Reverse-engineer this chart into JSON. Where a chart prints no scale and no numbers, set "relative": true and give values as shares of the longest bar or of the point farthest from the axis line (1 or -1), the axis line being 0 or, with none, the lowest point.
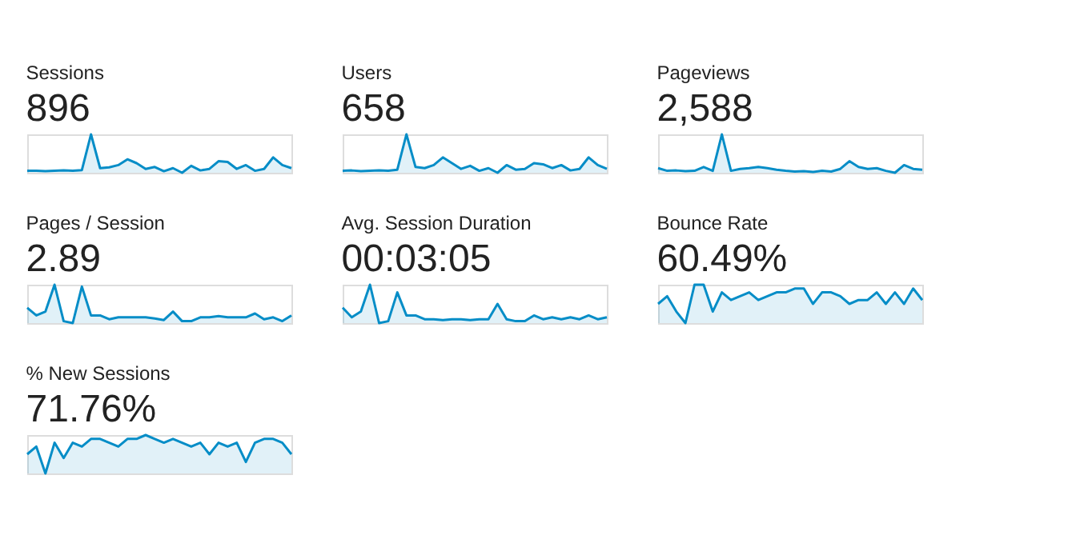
{
  "chart_data": [
    {
      "type": "area",
      "title": "Sessions",
      "subtitle": "896",
      "relative": true,
      "grid": false,
      "categories": [
        null,
        null,
        null,
        null,
        null,
        null,
        null,
        null,
        null,
        null,
        null,
        null,
        null,
        null,
        null,
        null,
        null,
        null,
        null,
        null,
        null,
        null,
        null,
        null,
        null,
        null,
        null,
        null,
        null,
        null
      ],
      "series": [
        {
          "color": "#058dc7",
          "values": [
            0.05,
            0.05,
            0.04,
            0.05,
            0.06,
            0.05,
            0.07,
            1,
            0.12,
            0.14,
            0.2,
            0.35,
            0.25,
            0.1,
            0.15,
            0.04,
            0.12,
            0,
            0.18,
            0.06,
            0.1,
            0.3,
            0.28,
            0.1,
            0.2,
            0.05,
            0.1,
            0.4,
            0.2,
            0.12
          ]
        }
      ]
    },
    {
      "type": "area",
      "title": "Users",
      "subtitle": "658",
      "relative": true,
      "grid": false,
      "categories": [
        null,
        null,
        null,
        null,
        null,
        null,
        null,
        null,
        null,
        null,
        null,
        null,
        null,
        null,
        null,
        null,
        null,
        null,
        null,
        null,
        null,
        null,
        null,
        null,
        null,
        null,
        null,
        null,
        null,
        null
      ],
      "series": [
        {
          "color": "#058dc7",
          "values": [
            0.05,
            0.06,
            0.04,
            0.05,
            0.06,
            0.05,
            0.08,
            1,
            0.15,
            0.12,
            0.2,
            0.4,
            0.25,
            0.1,
            0.18,
            0.05,
            0.12,
            0,
            0.2,
            0.08,
            0.1,
            0.25,
            0.22,
            0.12,
            0.2,
            0.06,
            0.1,
            0.4,
            0.2,
            0.1
          ]
        }
      ]
    },
    {
      "type": "area",
      "title": "Pageviews",
      "subtitle": "2,588",
      "relative": true,
      "grid": false,
      "categories": [
        null,
        null,
        null,
        null,
        null,
        null,
        null,
        null,
        null,
        null,
        null,
        null,
        null,
        null,
        null,
        null,
        null,
        null,
        null,
        null,
        null,
        null,
        null,
        null,
        null,
        null,
        null,
        null,
        null,
        null
      ],
      "series": [
        {
          "color": "#058dc7",
          "values": [
            0.12,
            0.05,
            0.06,
            0.04,
            0.05,
            0.15,
            0.05,
            1,
            0.05,
            0.1,
            0.12,
            0.15,
            0.12,
            0.08,
            0.05,
            0.03,
            0.04,
            0.02,
            0.05,
            0.03,
            0.1,
            0.3,
            0.15,
            0.1,
            0.12,
            0.05,
            0,
            0.2,
            0.1,
            0.08
          ]
        }
      ]
    },
    {
      "type": "area",
      "title": "Pages / Session",
      "subtitle": "2.89",
      "relative": true,
      "grid": false,
      "categories": [
        null,
        null,
        null,
        null,
        null,
        null,
        null,
        null,
        null,
        null,
        null,
        null,
        null,
        null,
        null,
        null,
        null,
        null,
        null,
        null,
        null,
        null,
        null,
        null,
        null,
        null,
        null,
        null,
        null,
        null
      ],
      "series": [
        {
          "color": "#058dc7",
          "values": [
            0.4,
            0.2,
            0.3,
            1,
            0.05,
            0,
            0.95,
            0.2,
            0.2,
            0.1,
            0.15,
            0.15,
            0.15,
            0.15,
            0.12,
            0.08,
            0.3,
            0.05,
            0.05,
            0.15,
            0.15,
            0.18,
            0.15,
            0.15,
            0.15,
            0.25,
            0.1,
            0.15,
            0.05,
            0.2
          ]
        }
      ]
    },
    {
      "type": "area",
      "title": "Avg. Session Duration",
      "subtitle": "00:03:05",
      "relative": true,
      "grid": false,
      "categories": [
        null,
        null,
        null,
        null,
        null,
        null,
        null,
        null,
        null,
        null,
        null,
        null,
        null,
        null,
        null,
        null,
        null,
        null,
        null,
        null,
        null,
        null,
        null,
        null,
        null,
        null,
        null,
        null,
        null,
        null
      ],
      "series": [
        {
          "color": "#058dc7",
          "values": [
            0.4,
            0.15,
            0.3,
            1,
            0,
            0.05,
            0.8,
            0.2,
            0.2,
            0.1,
            0.1,
            0.08,
            0.1,
            0.1,
            0.08,
            0.1,
            0.1,
            0.5,
            0.1,
            0.05,
            0.05,
            0.2,
            0.1,
            0.15,
            0.1,
            0.15,
            0.1,
            0.2,
            0.1,
            0.15
          ]
        }
      ]
    },
    {
      "type": "area",
      "title": "Bounce Rate",
      "subtitle": "60.49%",
      "relative": true,
      "grid": false,
      "categories": [
        null,
        null,
        null,
        null,
        null,
        null,
        null,
        null,
        null,
        null,
        null,
        null,
        null,
        null,
        null,
        null,
        null,
        null,
        null,
        null,
        null,
        null,
        null,
        null,
        null,
        null,
        null,
        null,
        null,
        null
      ],
      "series": [
        {
          "color": "#058dc7",
          "values": [
            0.5,
            0.7,
            0.3,
            0,
            1,
            1,
            0.3,
            0.8,
            0.6,
            0.7,
            0.8,
            0.6,
            0.7,
            0.8,
            0.8,
            0.9,
            0.9,
            0.5,
            0.8,
            0.8,
            0.7,
            0.5,
            0.6,
            0.6,
            0.8,
            0.5,
            0.8,
            0.5,
            0.9,
            0.6
          ]
        }
      ]
    },
    {
      "type": "area",
      "title": "% New Sessions",
      "subtitle": "71.76%",
      "relative": true,
      "grid": false,
      "categories": [
        null,
        null,
        null,
        null,
        null,
        null,
        null,
        null,
        null,
        null,
        null,
        null,
        null,
        null,
        null,
        null,
        null,
        null,
        null,
        null,
        null,
        null,
        null,
        null,
        null,
        null,
        null,
        null,
        null,
        null
      ],
      "series": [
        {
          "color": "#058dc7",
          "values": [
            0.5,
            0.7,
            0,
            0.8,
            0.4,
            0.8,
            0.7,
            0.9,
            0.9,
            0.8,
            0.7,
            0.9,
            0.9,
            1,
            0.9,
            0.8,
            0.9,
            0.8,
            0.7,
            0.8,
            0.5,
            0.8,
            0.7,
            0.8,
            0.3,
            0.8,
            0.9,
            0.9,
            0.8,
            0.5
          ]
        }
      ]
    }
  ]
}
